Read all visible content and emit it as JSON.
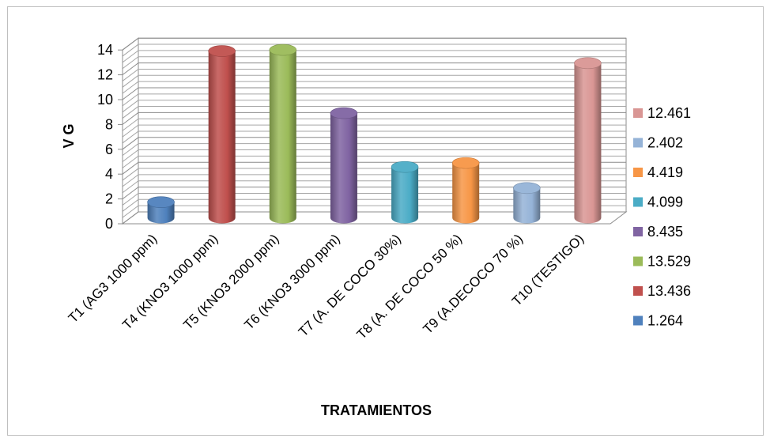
{
  "chart_data": {
    "type": "bar",
    "style": "3d-cylinder",
    "categories": [
      "T1 (AG3 1000 ppm)",
      "T4 (KNO3 1000 ppm)",
      "T5 (KNO3 2000 ppm)",
      "T6 (KNO3 3000 ppm)",
      "T7  (A. DE COCO 30%)",
      "T8 (A. DE COCO 50 %)",
      "T9 (A.DECOCO 70 %)",
      "T10 (TESTIGO)"
    ],
    "values": [
      1.264,
      13.436,
      13.529,
      8.435,
      4.099,
      4.419,
      2.402,
      12.461
    ],
    "legend_labels": [
      "12.461",
      "2.402",
      "4.419",
      "4.099",
      "8.435",
      "13.529",
      "13.436",
      "1.264"
    ],
    "legend_colors": [
      "#d99694",
      "#95b3d7",
      "#f79646",
      "#4bacc6",
      "#8064a2",
      "#9bbb59",
      "#c0504d",
      "#4f81bd"
    ],
    "colors": [
      "#4f81bd",
      "#c0504d",
      "#9bbb59",
      "#8064a2",
      "#4bacc6",
      "#f79646",
      "#95b3d7",
      "#d99694"
    ],
    "title": "",
    "xlabel": "TRATAMIENTOS",
    "ylabel": "V G",
    "ylim": [
      0,
      14
    ],
    "yticks": [
      0,
      2,
      4,
      6,
      8,
      10,
      12,
      14
    ],
    "grid": true,
    "legend_position": "right"
  }
}
